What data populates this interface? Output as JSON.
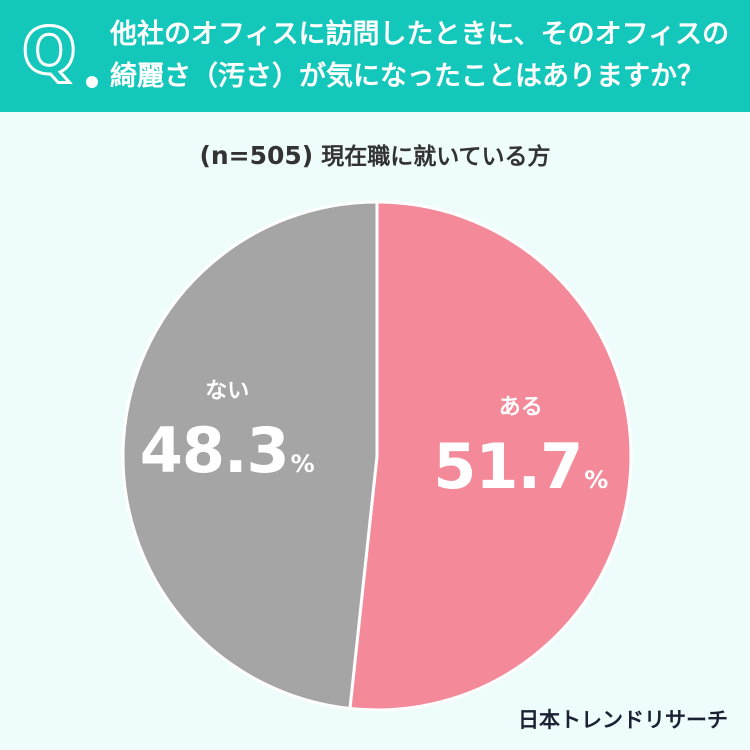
{
  "header": {
    "q_mark": "Q",
    "question_line1": "他社のオフィスに訪問したときに、そのオフィスの",
    "question_line2": "綺麗さ（汚さ）が気になったことはありますか？"
  },
  "sample": {
    "n_label": "(n=505)",
    "group": "現在職に就いている方"
  },
  "brand": "日本トレンドリサーチ",
  "colors": {
    "header_bg": "#14c7bb",
    "page_bg": "#effcfc",
    "yes": "#f48a99",
    "no": "#a5a5a5"
  },
  "chart_data": {
    "type": "pie",
    "categories": [
      "ある",
      "ない"
    ],
    "values": [
      51.7,
      48.3
    ],
    "unit": "%",
    "colors": [
      "#f48a99",
      "#a5a5a5"
    ],
    "start": "12 o'clock",
    "direction": "clockwise"
  }
}
